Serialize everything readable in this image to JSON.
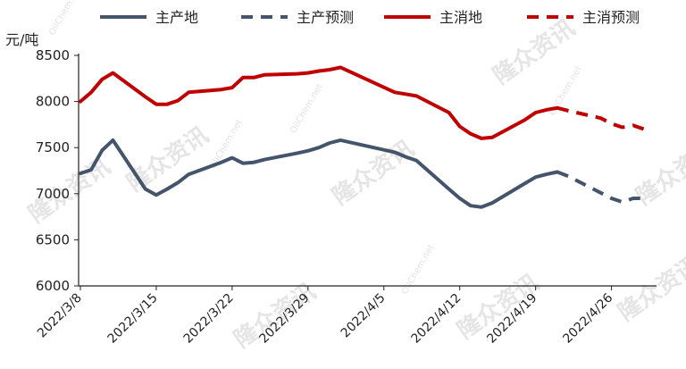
{
  "chart_data": {
    "type": "line",
    "unit_label": "元/吨",
    "ylim": [
      6000,
      8500
    ],
    "yticks": [
      6000,
      6500,
      7000,
      7500,
      8000,
      8500
    ],
    "x_tick_labels": [
      "2022/3/8",
      "2022/3/15",
      "2022/3/22",
      "2022/3/29",
      "2022/4/5",
      "2022/4/12",
      "2022/4/19",
      "2022/4/26"
    ],
    "legend_position": "top",
    "grid": false,
    "watermark_main": "隆众资讯",
    "watermark_small": "OilChem.net",
    "series": [
      {
        "name": "主产地",
        "color": "#44546a",
        "style": "solid",
        "x": [
          "2022/3/8",
          "2022/3/9",
          "2022/3/10",
          "2022/3/11",
          "2022/3/14",
          "2022/3/15",
          "2022/3/16",
          "2022/3/17",
          "2022/3/18",
          "2022/3/21",
          "2022/3/22",
          "2022/3/23",
          "2022/3/24",
          "2022/3/25",
          "2022/3/28",
          "2022/3/29",
          "2022/3/30",
          "2022/3/31",
          "2022/4/1",
          "2022/4/6",
          "2022/4/7",
          "2022/4/8",
          "2022/4/11",
          "2022/4/12",
          "2022/4/13",
          "2022/4/14",
          "2022/4/15",
          "2022/4/18",
          "2022/4/19",
          "2022/4/20",
          "2022/4/21"
        ],
        "values": [
          7220,
          7260,
          7470,
          7580,
          7050,
          6985,
          7050,
          7120,
          7210,
          7340,
          7390,
          7330,
          7340,
          7370,
          7440,
          7465,
          7500,
          7550,
          7580,
          7450,
          7400,
          7360,
          7050,
          6950,
          6870,
          6855,
          6900,
          7110,
          7180,
          7210,
          7235
        ]
      },
      {
        "name": "主产预测",
        "color": "#44546a",
        "style": "dashed",
        "x": [
          "2022/4/21",
          "2022/4/22",
          "2022/4/25",
          "2022/4/26",
          "2022/4/27",
          "2022/4/28",
          "2022/4/29"
        ],
        "values": [
          7235,
          7190,
          7010,
          6950,
          6910,
          6950,
          6950
        ]
      },
      {
        "name": "主消地",
        "color": "#c00000",
        "style": "solid",
        "x": [
          "2022/3/8",
          "2022/3/9",
          "2022/3/10",
          "2022/3/11",
          "2022/3/14",
          "2022/3/15",
          "2022/3/16",
          "2022/3/17",
          "2022/3/18",
          "2022/3/21",
          "2022/3/22",
          "2022/3/23",
          "2022/3/24",
          "2022/3/25",
          "2022/3/28",
          "2022/3/29",
          "2022/3/30",
          "2022/3/31",
          "2022/4/1",
          "2022/4/6",
          "2022/4/7",
          "2022/4/8",
          "2022/4/11",
          "2022/4/12",
          "2022/4/13",
          "2022/4/14",
          "2022/4/15",
          "2022/4/18",
          "2022/4/19",
          "2022/4/20",
          "2022/4/21"
        ],
        "values": [
          8000,
          8100,
          8240,
          8310,
          8050,
          7970,
          7970,
          8010,
          8100,
          8130,
          8150,
          8260,
          8260,
          8290,
          8300,
          8310,
          8330,
          8345,
          8370,
          8100,
          8080,
          8060,
          7880,
          7730,
          7650,
          7600,
          7610,
          7800,
          7880,
          7910,
          7930
        ]
      },
      {
        "name": "主消预测",
        "color": "#c00000",
        "style": "dashed",
        "x": [
          "2022/4/21",
          "2022/4/22",
          "2022/4/25",
          "2022/4/26",
          "2022/4/27",
          "2022/4/28",
          "2022/4/29"
        ],
        "values": [
          7930,
          7900,
          7820,
          7760,
          7720,
          7740,
          7700
        ]
      }
    ]
  }
}
